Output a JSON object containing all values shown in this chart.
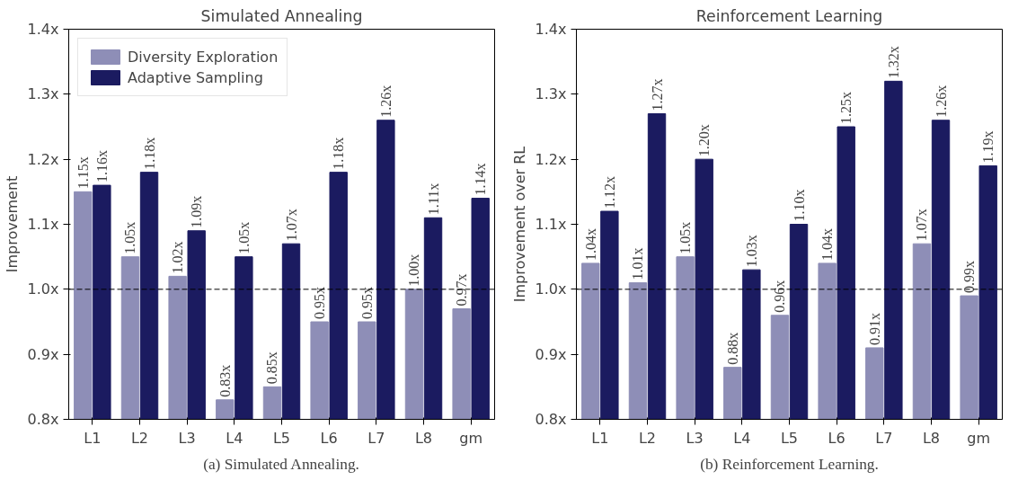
{
  "chart_data": [
    {
      "type": "bar",
      "title": "Simulated Annealing",
      "ylabel": "Improvement",
      "categories": [
        "L1",
        "L2",
        "L3",
        "L4",
        "L5",
        "L6",
        "L7",
        "L8",
        "gm"
      ],
      "series": [
        {
          "name": "Diversity Exploration",
          "color": "#8e8eb7",
          "values": [
            1.15,
            1.05,
            1.02,
            0.83,
            0.85,
            0.95,
            0.95,
            1.0,
            0.97
          ],
          "value_labels": [
            "1.15x",
            "1.05x",
            "1.02x",
            "0.83x",
            "0.85x",
            "0.95x",
            "0.95x",
            "1.00x",
            "0.97x"
          ]
        },
        {
          "name": "Adaptive Sampling",
          "color": "#1b1b60",
          "values": [
            1.16,
            1.18,
            1.09,
            1.05,
            1.07,
            1.18,
            1.26,
            1.11,
            1.14
          ],
          "value_labels": [
            "1.16x",
            "1.18x",
            "1.09x",
            "1.05x",
            "1.07x",
            "1.18x",
            "1.26x",
            "1.11x",
            "1.14x"
          ]
        }
      ],
      "ylim": [
        0.8,
        1.4
      ],
      "yticks": [
        {
          "value": 0.8,
          "label": "0.8x"
        },
        {
          "value": 0.9,
          "label": "0.9x"
        },
        {
          "value": 1.0,
          "label": "1.0x"
        },
        {
          "value": 1.1,
          "label": "1.1x"
        },
        {
          "value": 1.2,
          "label": "1.2x"
        },
        {
          "value": 1.3,
          "label": "1.3x"
        },
        {
          "value": 1.4,
          "label": "1.4x"
        }
      ],
      "ref_lines": [
        {
          "axis": "y",
          "value": 1.0,
          "line_style": "dashed",
          "color": "#000000"
        }
      ],
      "legend": "top left",
      "grid": false,
      "annotations": [
        "(a) Simulated Annealing."
      ]
    },
    {
      "type": "bar",
      "title": "Reinforcement Learning",
      "ylabel": "Improvement over RL",
      "categories": [
        "L1",
        "L2",
        "L3",
        "L4",
        "L5",
        "L6",
        "L7",
        "L8",
        "gm"
      ],
      "series": [
        {
          "color": "#8e8eb7",
          "values": [
            1.04,
            1.01,
            1.05,
            0.88,
            0.96,
            1.04,
            0.91,
            1.07,
            0.99
          ],
          "value_labels": [
            "1.04x",
            "1.01x",
            "1.05x",
            "0.88x",
            "0.96x",
            "1.04x",
            "0.91x",
            "1.07x",
            "0.99x"
          ]
        },
        {
          "color": "#1b1b60",
          "values": [
            1.12,
            1.27,
            1.2,
            1.03,
            1.1,
            1.25,
            1.32,
            1.26,
            1.19
          ],
          "value_labels": [
            "1.12x",
            "1.27x",
            "1.20x",
            "1.03x",
            "1.10x",
            "1.25x",
            "1.32x",
            "1.26x",
            "1.19x"
          ]
        }
      ],
      "ylim": [
        0.8,
        1.4
      ],
      "yticks": [
        {
          "value": 0.8,
          "label": "0.8x"
        },
        {
          "value": 0.9,
          "label": "0.9x"
        },
        {
          "value": 1.0,
          "label": "1.0x"
        },
        {
          "value": 1.1,
          "label": "1.1x"
        },
        {
          "value": 1.2,
          "label": "1.2x"
        },
        {
          "value": 1.3,
          "label": "1.3x"
        },
        {
          "value": 1.4,
          "label": "1.4x"
        }
      ],
      "ref_lines": [
        {
          "axis": "y",
          "value": 1.0,
          "line_style": "dashed",
          "color": "#000000"
        }
      ],
      "grid": false,
      "annotations": [
        "(b) Reinforcement Learning."
      ]
    }
  ]
}
